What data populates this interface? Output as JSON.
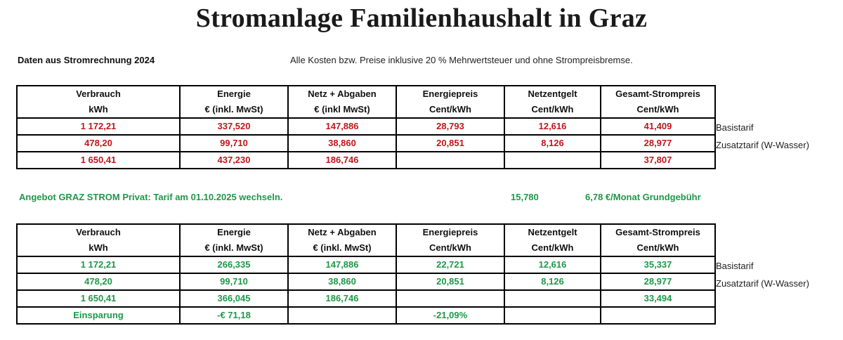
{
  "title": "Stromanlage Familienhaushalt in Graz",
  "source_label": "Daten aus Stromrechnung 2024",
  "price_note": "Alle Kosten bzw. Preise inklusive 20 % Mehrwertsteuer und ohne Strompreisbremse.",
  "colors": {
    "current": "#c0161c",
    "offer": "#1e9848"
  },
  "table1": {
    "header_line1": [
      "Verbrauch",
      "Energie",
      "Netz + Abgaben",
      "Energiepreis",
      "Netzentgelt",
      "Gesamt-Strompreis"
    ],
    "header_line2": [
      "kWh",
      "€ (inkl. MwSt)",
      "€ (inkl MwSt)",
      "Cent/kWh",
      "Cent/kWh",
      "Cent/kWh"
    ],
    "rows": [
      [
        "1 172,21",
        "337,520",
        "147,886",
        "28,793",
        "12,616",
        "41,409"
      ],
      [
        "478,20",
        "99,710",
        "38,860",
        "20,851",
        "8,126",
        "28,977"
      ],
      [
        "1 650,41",
        "437,230",
        "186,746",
        "",
        "",
        "37,807"
      ]
    ],
    "side_labels": [
      "Basistarif",
      "Zusatztarif (W-Wasser)"
    ]
  },
  "offer": {
    "text": "Angebot GRAZ STROM Privat: Tarif am 01.10.2025 wechseln.",
    "value": "15,780",
    "fee": "6,78 €/Monat Grundgebühr"
  },
  "table2": {
    "header_line1": [
      "Verbrauch",
      "Energie",
      "Netz + Abgaben",
      "Energiepreis",
      "Netzentgelt",
      "Gesamt-Strompreis"
    ],
    "header_line2": [
      "kWh",
      "€ (inkl. MwSt)",
      "€ (inkl. MwSt)",
      "Cent/kWh",
      "Cent/kWh",
      "Cent/kWh"
    ],
    "rows": [
      [
        "1 172,21",
        "266,335",
        "147,886",
        "22,721",
        "12,616",
        "35,337"
      ],
      [
        "478,20",
        "99,710",
        "38,860",
        "20,851",
        "8,126",
        "28,977"
      ],
      [
        "1 650,41",
        "366,045",
        "186,746",
        "",
        "",
        "33,494"
      ],
      [
        "Einsparung",
        "-€ 71,18",
        "",
        "-21,09%",
        "",
        ""
      ]
    ],
    "side_labels": [
      "Basistarif",
      "Zusatztarif (W-Wasser)"
    ]
  }
}
